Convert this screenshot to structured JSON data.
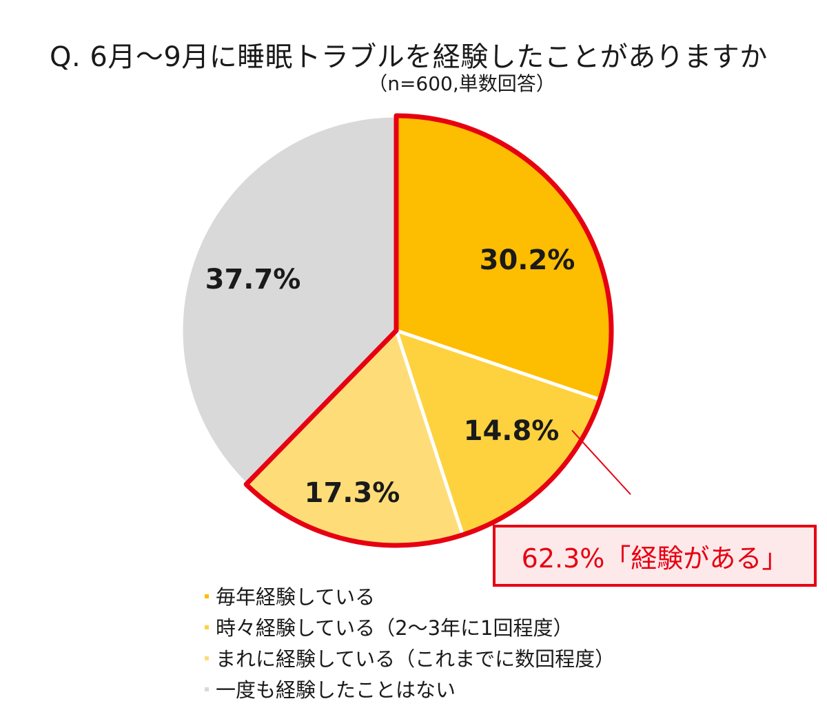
{
  "chart_data": {
    "type": "pie",
    "title": "Q. 6月～9月に睡眠トラブルを経験したことがありますか",
    "subtitle": "（n=600,単数回答）",
    "slices": [
      {
        "name": "毎年経験している",
        "value": 30.2,
        "label": "30.2%",
        "color": "#fdbd00"
      },
      {
        "name": "時々経験している（2～3年に1回程度）",
        "value": 14.8,
        "label": "14.8%",
        "color": "#fed23f"
      },
      {
        "name": "まれに経験している（これまでに数回程度）",
        "value": 17.3,
        "label": "17.3%",
        "color": "#fedd79"
      },
      {
        "name": "一度も経験したことはない",
        "value": 37.7,
        "label": "37.7%",
        "color": "#d9d9d9"
      }
    ],
    "legend_position": "bottom",
    "callout": {
      "text": "62.3%「経験がある」",
      "color": "#e60012"
    }
  }
}
